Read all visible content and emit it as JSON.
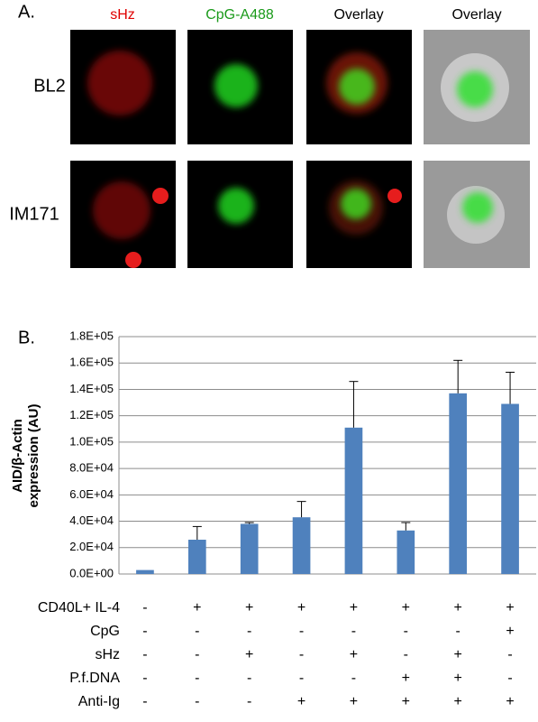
{
  "panel_a": {
    "label": "A.",
    "columns": [
      "sHz",
      "CpG-A488",
      "Overlay",
      "Overlay"
    ],
    "rows": [
      "BL2",
      "IM171"
    ]
  },
  "chart_data": {
    "type": "bar",
    "panel_label": "B.",
    "y_label": [
      "AID/β-Actin",
      "expression (AU)"
    ],
    "categories": [
      null,
      null,
      null,
      null,
      null,
      null,
      null,
      null
    ],
    "values": [
      3000,
      26000,
      38000,
      43000,
      111000,
      33000,
      137000,
      129000
    ],
    "errors": [
      null,
      10000,
      1000,
      12000,
      35000,
      6000,
      25000,
      24000
    ],
    "color": "#4f81bd",
    "ylim": [
      0,
      180000
    ],
    "yticks": [
      {
        "value": 0,
        "label": "0.0E+00"
      },
      {
        "value": 20000,
        "label": "2.0E+04"
      },
      {
        "value": 40000,
        "label": "4.0E+04"
      },
      {
        "value": 60000,
        "label": "6.0E+04"
      },
      {
        "value": 80000,
        "label": "8.0E+04"
      },
      {
        "value": 100000,
        "label": "1.0E+05"
      },
      {
        "value": 120000,
        "label": "1.2E+05"
      },
      {
        "value": 140000,
        "label": "1.4E+05"
      },
      {
        "value": 160000,
        "label": "1.6E+05"
      },
      {
        "value": 180000,
        "label": "1.8E+05"
      }
    ],
    "grid": true,
    "conditions": [
      {
        "label": "CD40L+ IL-4",
        "values": [
          "-",
          "+",
          "+",
          "+",
          "+",
          "+",
          "+",
          "+"
        ]
      },
      {
        "label": "CpG",
        "values": [
          "-",
          "-",
          "-",
          "-",
          "-",
          "-",
          "-",
          "+"
        ]
      },
      {
        "label": "sHz",
        "values": [
          "-",
          "-",
          "+",
          "-",
          "+",
          "-",
          "+",
          "-"
        ]
      },
      {
        "label": "P.f.DNA",
        "values": [
          "-",
          "-",
          "-",
          "-",
          "-",
          "+",
          "+",
          "-"
        ]
      },
      {
        "label": "Anti-Ig",
        "values": [
          "-",
          "-",
          "-",
          "+",
          "+",
          "+",
          "+",
          "+"
        ]
      }
    ]
  }
}
